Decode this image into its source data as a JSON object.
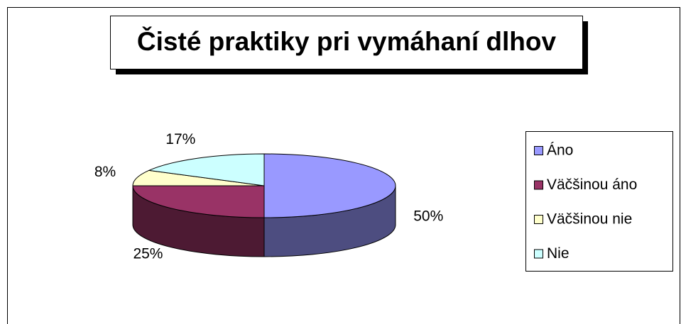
{
  "chart_data": {
    "type": "pie",
    "title": "Čisté praktiky pri vymáhaní dlhov",
    "categories": [
      "Áno",
      "Väčšinou áno",
      "Väčšinou nie",
      "Nie"
    ],
    "values": [
      50,
      25,
      8,
      17
    ],
    "value_labels": [
      "50%",
      "25%",
      "8%",
      "17%"
    ],
    "colors": [
      "#9999ff",
      "#993366",
      "#ffffcc",
      "#ccffff"
    ],
    "legend": "right"
  }
}
